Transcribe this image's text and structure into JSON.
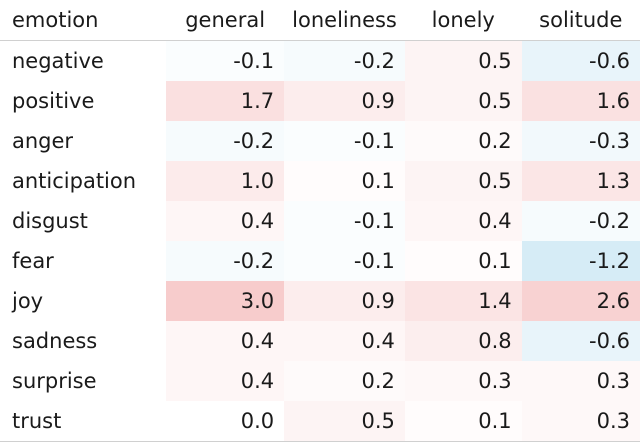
{
  "chart_data": {
    "type": "heatmap",
    "row_header": "emotion",
    "columns": [
      "general",
      "loneliness",
      "lonely",
      "solitude"
    ],
    "rows": [
      {
        "label": "negative",
        "values": [
          "-0.1",
          "-0.2",
          "0.5",
          "-0.6"
        ]
      },
      {
        "label": "positive",
        "values": [
          "1.7",
          "0.9",
          "0.5",
          "1.6"
        ]
      },
      {
        "label": "anger",
        "values": [
          "-0.2",
          "-0.1",
          "0.2",
          "-0.3"
        ]
      },
      {
        "label": "anticipation",
        "values": [
          "1.0",
          "0.1",
          "0.5",
          "1.3"
        ]
      },
      {
        "label": "disgust",
        "values": [
          "0.4",
          "-0.1",
          "0.4",
          "-0.2"
        ]
      },
      {
        "label": "fear",
        "values": [
          "-0.2",
          "-0.1",
          "0.1",
          "-1.2"
        ]
      },
      {
        "label": "joy",
        "values": [
          "3.0",
          "0.9",
          "1.4",
          "2.6"
        ]
      },
      {
        "label": "sadness",
        "values": [
          "0.4",
          "0.4",
          "0.8",
          "-0.6"
        ]
      },
      {
        "label": "surprise",
        "values": [
          "0.4",
          "0.2",
          "0.3",
          "0.3"
        ]
      },
      {
        "label": "trust",
        "values": [
          "0.0",
          "0.5",
          "0.1",
          "0.3"
        ]
      }
    ],
    "colors": {
      "positive": "#f7cccc",
      "negative": "#d6ecf6",
      "neutral": "#ffffff"
    }
  }
}
